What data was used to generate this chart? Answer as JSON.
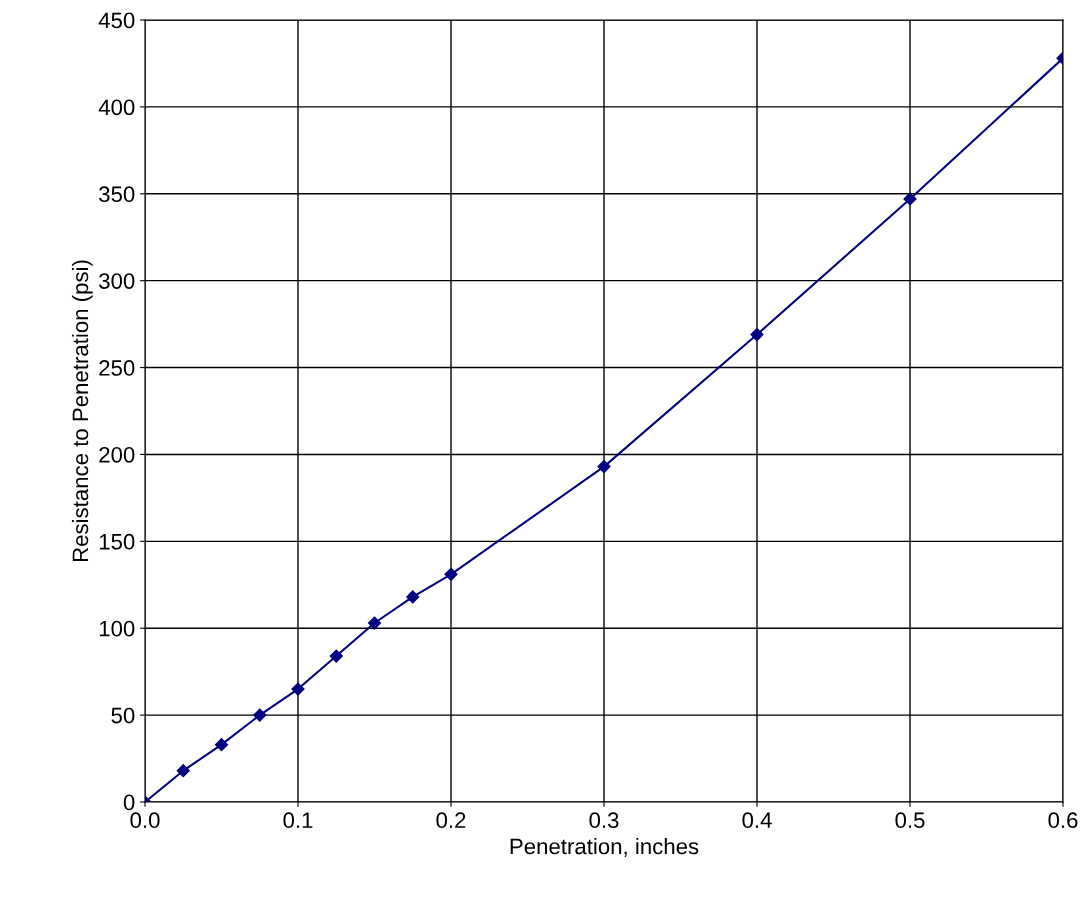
{
  "chart_data": {
    "type": "line",
    "xlabel": "Penetration, inches",
    "ylabel": "Resistance to Penetration (psi)",
    "x": [
      0.0,
      0.025,
      0.05,
      0.075,
      0.1,
      0.125,
      0.15,
      0.175,
      0.2,
      0.3,
      0.4,
      0.5,
      0.6
    ],
    "series": [
      {
        "color": "#000080",
        "values": [
          0,
          18,
          33,
          50,
          65,
          84,
          103,
          118,
          131,
          193,
          269,
          347,
          428
        ]
      }
    ],
    "xlim": [
      0.0,
      0.6
    ],
    "xticks": [
      {
        "value": 0.0,
        "label": "0.0"
      },
      0.1,
      0.2,
      0.3,
      0.4,
      0.5,
      0.6
    ],
    "ylim": [
      0,
      450
    ],
    "yticks": [
      0,
      50,
      100,
      150,
      200,
      250,
      300,
      350,
      400,
      450
    ],
    "grid": true,
    "marker": "diamond",
    "line_style": "solid"
  }
}
